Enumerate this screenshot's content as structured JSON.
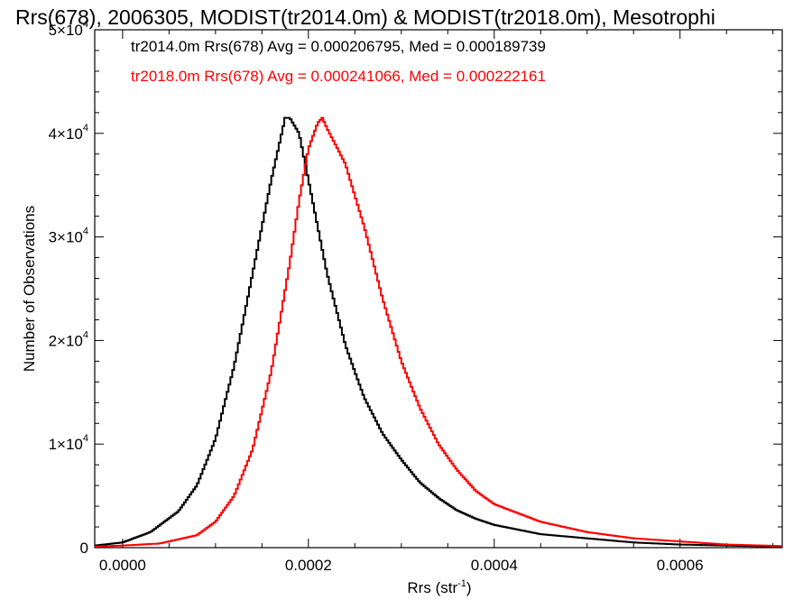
{
  "chart_data": {
    "type": "line",
    "title": "Rrs(678), 2006305, MODIST(tr2014.0m) & MODIST(tr2018.0m), Mesotrophi",
    "xlabel": "Rrs (str",
    "xlabel_sup": "-1",
    "xlabel_close": ")",
    "ylabel": "Number of Observations",
    "xlim": [
      -3e-05,
      0.00071
    ],
    "ylim": [
      0,
      50000
    ],
    "x_ticks": [
      {
        "value": 0.0,
        "label": "0.0000"
      },
      {
        "value": 0.0002,
        "label": "0.0002"
      },
      {
        "value": 0.0004,
        "label": "0.0004"
      },
      {
        "value": 0.0006,
        "label": "0.0006"
      }
    ],
    "y_ticks": [
      {
        "value": 0,
        "mant": "0",
        "exp": ""
      },
      {
        "value": 10000,
        "mant": "1×10",
        "exp": "4"
      },
      {
        "value": 20000,
        "mant": "2×10",
        "exp": "4"
      },
      {
        "value": 30000,
        "mant": "3×10",
        "exp": "4"
      },
      {
        "value": 40000,
        "mant": "4×10",
        "exp": "4"
      },
      {
        "value": 50000,
        "mant": "5×10",
        "exp": "4"
      }
    ],
    "grid": false,
    "series": [
      {
        "name": "tr2014.0m",
        "color": "#000000",
        "legend": "tr2014.0m Rrs(678) Avg = 0.000206795, Med = 0.000189739",
        "points": [
          [
            -3e-05,
            200
          ],
          [
            0.0,
            500
          ],
          [
            3e-05,
            1500
          ],
          [
            6e-05,
            3500
          ],
          [
            8e-05,
            6000
          ],
          [
            0.0001,
            10500
          ],
          [
            0.00012,
            17500
          ],
          [
            0.00014,
            26500
          ],
          [
            0.00016,
            35500
          ],
          [
            0.00017,
            39500
          ],
          [
            0.000175,
            41500
          ],
          [
            0.00018,
            41500
          ],
          [
            0.00019,
            40000
          ],
          [
            0.0002,
            35500
          ],
          [
            0.00022,
            26500
          ],
          [
            0.00024,
            19500
          ],
          [
            0.00026,
            14500
          ],
          [
            0.00028,
            11000
          ],
          [
            0.0003,
            8500
          ],
          [
            0.00032,
            6300
          ],
          [
            0.00034,
            4800
          ],
          [
            0.00036,
            3600
          ],
          [
            0.00038,
            2800
          ],
          [
            0.0004,
            2200
          ],
          [
            0.00045,
            1300
          ],
          [
            0.0005,
            900
          ],
          [
            0.00055,
            500
          ],
          [
            0.0006,
            300
          ],
          [
            0.00065,
            200
          ],
          [
            0.00071,
            100
          ]
        ]
      },
      {
        "name": "tr2018.0m",
        "color": "#ff0000",
        "legend": "tr2018.0m Rrs(678) Avg = 0.000241066, Med = 0.000222161",
        "points": [
          [
            -3e-05,
            100
          ],
          [
            0.0,
            200
          ],
          [
            4e-05,
            400
          ],
          [
            8e-05,
            1200
          ],
          [
            0.0001,
            2500
          ],
          [
            0.00012,
            5000
          ],
          [
            0.00014,
            9500
          ],
          [
            0.00016,
            17000
          ],
          [
            0.00018,
            27500
          ],
          [
            0.00019,
            33500
          ],
          [
            0.0002,
            38500
          ],
          [
            0.00021,
            41000
          ],
          [
            0.000215,
            41500
          ],
          [
            0.00022,
            40500
          ],
          [
            0.00024,
            37000
          ],
          [
            0.00026,
            31000
          ],
          [
            0.00028,
            24000
          ],
          [
            0.0003,
            18000
          ],
          [
            0.00032,
            13500
          ],
          [
            0.00034,
            10000
          ],
          [
            0.00036,
            7500
          ],
          [
            0.00038,
            5500
          ],
          [
            0.0004,
            4200
          ],
          [
            0.00045,
            2500
          ],
          [
            0.0005,
            1500
          ],
          [
            0.00055,
            900
          ],
          [
            0.0006,
            600
          ],
          [
            0.00065,
            300
          ],
          [
            0.00071,
            150
          ]
        ]
      }
    ]
  }
}
